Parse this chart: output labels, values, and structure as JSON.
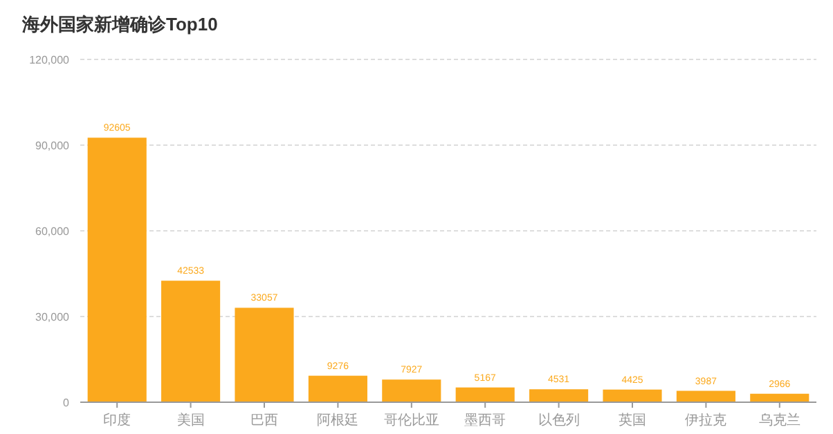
{
  "chart_data": {
    "type": "bar",
    "title": "海外国家新增确诊Top10",
    "categories": [
      "印度",
      "美国",
      "巴西",
      "阿根廷",
      "哥伦比亚",
      "墨西哥",
      "以色列",
      "英国",
      "伊拉克",
      "乌克兰"
    ],
    "values": [
      92605,
      42533,
      33057,
      9276,
      7927,
      5167,
      4531,
      4425,
      3987,
      2966
    ],
    "color": "#fba91d",
    "ylim": [
      0,
      120000
    ],
    "yticks": [
      {
        "value": 0,
        "label": "0"
      },
      {
        "value": 30000,
        "label": "30,000"
      },
      {
        "value": 60000,
        "label": "60,000"
      },
      {
        "value": 90000,
        "label": "90,000"
      },
      {
        "value": 120000,
        "label": "120,000"
      }
    ],
    "grid": "y",
    "data_labels": true
  }
}
